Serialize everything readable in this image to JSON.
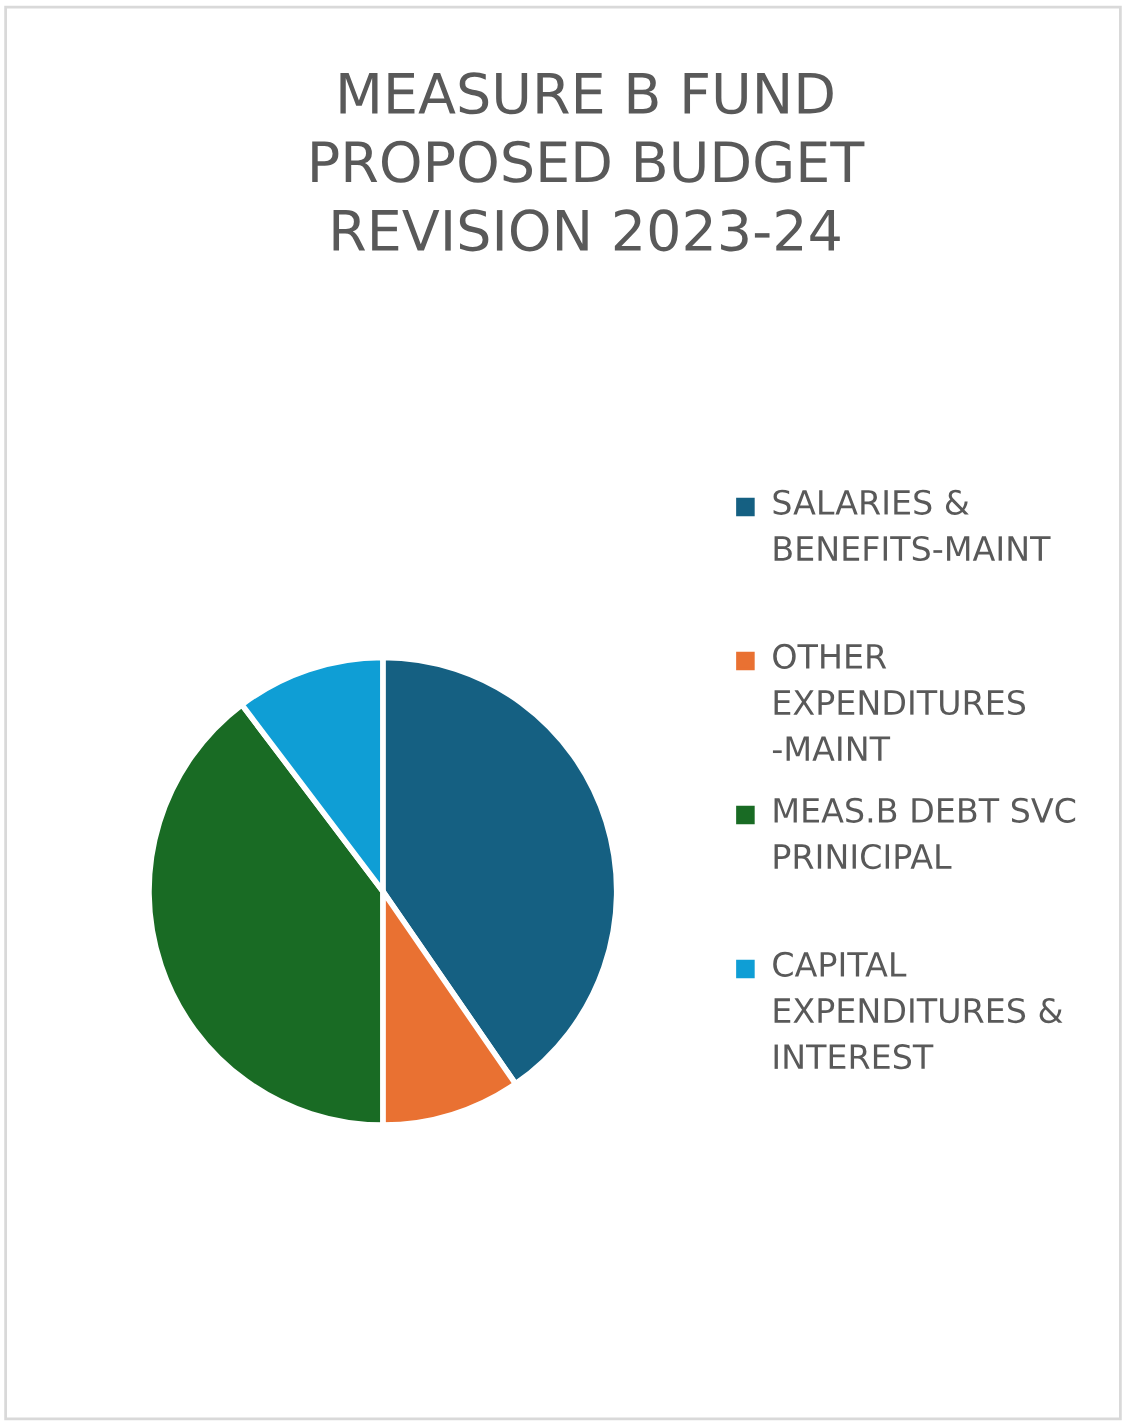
{
  "chart_data": {
    "type": "pie",
    "title": "MEASURE B FUND\nPROPOSED BUDGET\nREVISION 2023-24",
    "categories": [
      "SALARIES & BENEFITS-MAINT",
      "OTHER EXPENDITURES -MAINT",
      "MEAS.B DEBT SVC PRINICIPAL",
      "CAPITAL EXPENDITURES & INTEREST"
    ],
    "values": [
      40.4,
      9.6,
      39.7,
      10.3
    ],
    "colors": [
      "#156082",
      "#e97132",
      "#196b24",
      "#0f9ed5"
    ],
    "legend": "right"
  }
}
